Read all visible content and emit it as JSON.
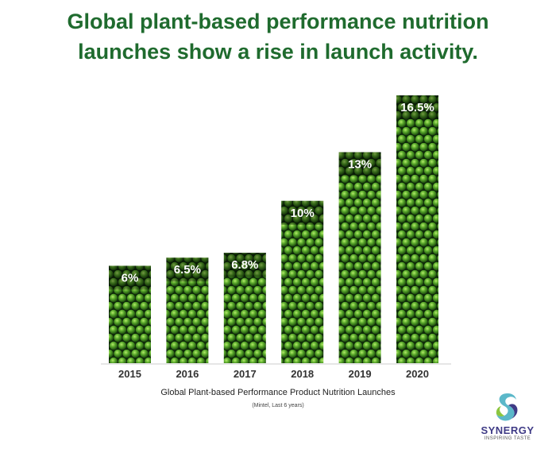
{
  "headline": {
    "line1": "Global plant-based performance nutrition",
    "line2": "launches show a rise in launch activity."
  },
  "chart_data": {
    "type": "bar",
    "categories": [
      "2015",
      "2016",
      "2017",
      "2018",
      "2019",
      "2020"
    ],
    "values": [
      6,
      6.5,
      6.8,
      10,
      13,
      16.5
    ],
    "data_labels": [
      "6%",
      "6.5%",
      "6.8%",
      "10%",
      "13%",
      "16.5%"
    ],
    "unit": "%",
    "ylim": [
      0,
      16.5
    ],
    "grid": false,
    "legend": "none",
    "bar_fill": "green peas photo texture",
    "caption": "Global Plant-based Performance Product Nutrition Launches",
    "source": "(Mintel, Last 6 years)"
  },
  "logo": {
    "name": "SYNERGY",
    "tagline": "INSPIRING TASTE",
    "colors": [
      "#3f3b86",
      "#5bb8c9",
      "#8cc63f"
    ]
  },
  "colors": {
    "headline": "#1f6b2e",
    "pea_dark": "#0f2a0a",
    "pea_mid": "#3f8f1e",
    "pea_light": "#9ad84e"
  }
}
